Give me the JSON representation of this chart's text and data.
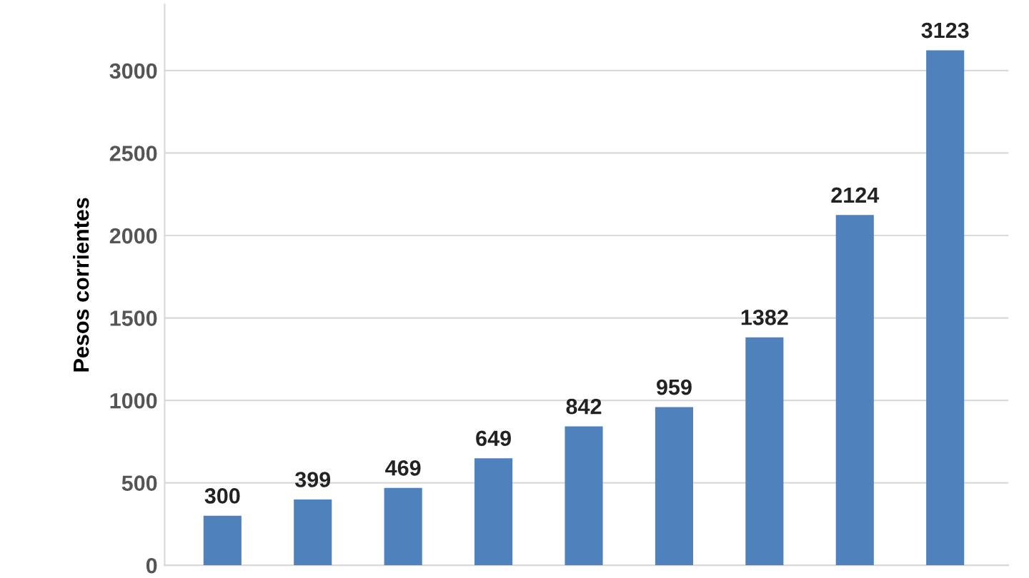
{
  "chart_data": {
    "type": "bar",
    "ylabel": "Pesos corrientes",
    "categories": [
      null,
      null,
      null,
      null,
      null,
      null,
      null,
      null,
      null
    ],
    "values": [
      300,
      399,
      469,
      649,
      842,
      959,
      1382,
      2124,
      3123
    ],
    "color": "#4f81bd",
    "ylim": [
      0,
      3400
    ],
    "yticks": [
      0,
      500,
      1000,
      1500,
      2000,
      2500,
      3000
    ],
    "grid": "y",
    "data_labels": true
  }
}
